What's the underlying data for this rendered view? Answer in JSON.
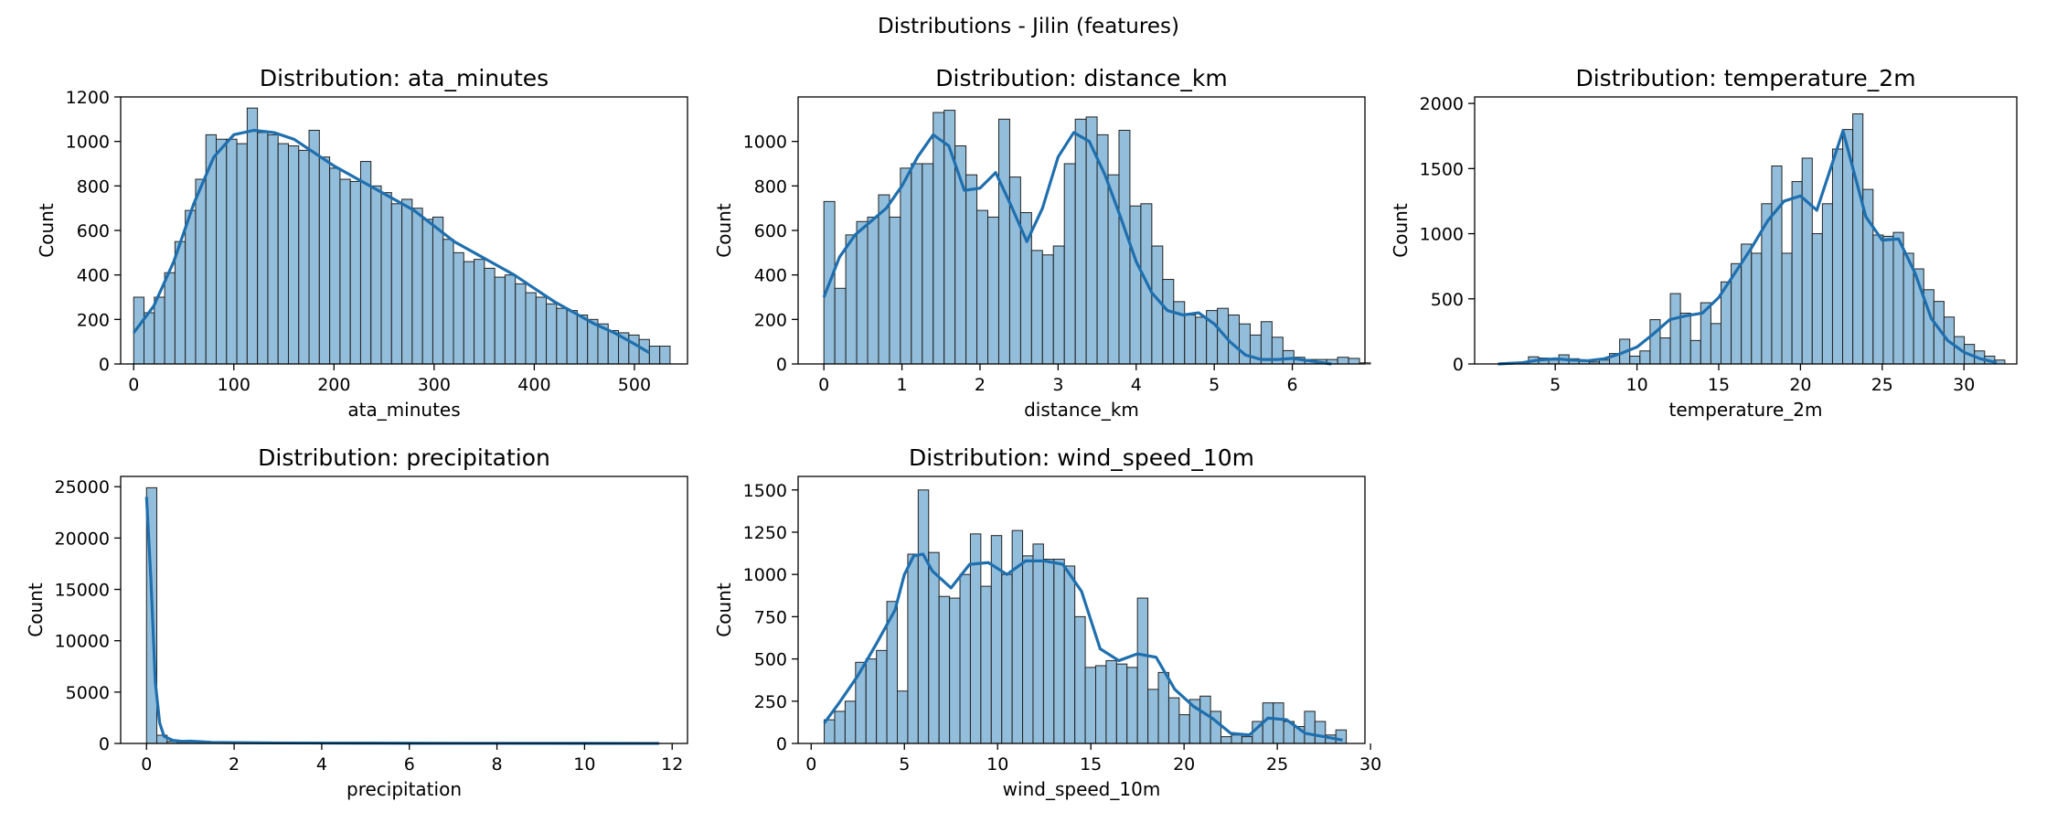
{
  "figure_title": "Distributions - Jilin (features)",
  "chart_data": [
    {
      "type": "bar",
      "subtype": "histogram_with_kde",
      "title": "Distribution: ata_minutes",
      "xlabel": "ata_minutes",
      "ylabel": "Count",
      "xlim": [
        -13,
        553
      ],
      "ylim": [
        0,
        1200
      ],
      "xticks": [
        0,
        100,
        200,
        300,
        400,
        500
      ],
      "yticks": [
        0,
        200,
        400,
        600,
        800,
        1000,
        1200
      ],
      "bin_start": 0,
      "bin_width": 10.3,
      "values": [
        300,
        230,
        300,
        410,
        550,
        690,
        830,
        1030,
        1010,
        1010,
        990,
        1150,
        1040,
        1030,
        990,
        980,
        960,
        1050,
        930,
        880,
        830,
        820,
        910,
        800,
        770,
        720,
        740,
        700,
        650,
        660,
        560,
        500,
        460,
        470,
        430,
        390,
        400,
        360,
        320,
        300,
        270,
        250,
        240,
        220,
        200,
        180,
        150,
        140,
        130,
        110,
        80,
        80
      ],
      "kde": {
        "x": [
          0,
          20,
          40,
          60,
          80,
          100,
          120,
          140,
          160,
          180,
          200,
          220,
          240,
          260,
          280,
          300,
          320,
          340,
          360,
          380,
          400,
          420,
          440,
          460,
          480,
          500,
          515
        ],
        "y": [
          140,
          260,
          460,
          720,
          930,
          1030,
          1050,
          1040,
          1010,
          950,
          890,
          840,
          790,
          740,
          690,
          620,
          550,
          500,
          450,
          400,
          340,
          280,
          230,
          180,
          140,
          90,
          50
        ]
      }
    },
    {
      "type": "bar",
      "subtype": "histogram_with_kde",
      "title": "Distribution: distance_km",
      "xlabel": "distance_km",
      "ylabel": "Count",
      "xlim": [
        -0.33,
        6.93
      ],
      "ylim": [
        0,
        1200
      ],
      "xticks": [
        0,
        1,
        2,
        3,
        4,
        5,
        6
      ],
      "yticks": [
        0,
        200,
        400,
        600,
        800,
        1000
      ],
      "bin_start": 0,
      "bin_width": 0.14,
      "values": [
        730,
        340,
        580,
        640,
        660,
        760,
        660,
        880,
        900,
        900,
        1130,
        1140,
        980,
        850,
        690,
        660,
        1100,
        840,
        680,
        510,
        490,
        530,
        900,
        1100,
        1110,
        1030,
        850,
        1050,
        710,
        720,
        530,
        380,
        280,
        220,
        210,
        240,
        250,
        220,
        180,
        130,
        190,
        120,
        60,
        30,
        20,
        20,
        20,
        30,
        25,
        5
      ],
      "kde": {
        "x": [
          0,
          0.2,
          0.4,
          0.6,
          0.8,
          1.0,
          1.2,
          1.4,
          1.6,
          1.8,
          2.0,
          2.2,
          2.4,
          2.6,
          2.8,
          3.0,
          3.2,
          3.4,
          3.6,
          3.8,
          4.0,
          4.2,
          4.4,
          4.6,
          4.8,
          5.0,
          5.2,
          5.4,
          5.6,
          5.8,
          6.0,
          6.2,
          6.5
        ],
        "y": [
          300,
          480,
          580,
          640,
          700,
          800,
          930,
          1030,
          980,
          780,
          790,
          860,
          710,
          550,
          700,
          930,
          1040,
          1000,
          850,
          660,
          460,
          320,
          240,
          220,
          230,
          180,
          100,
          40,
          20,
          20,
          25,
          15,
          0
        ]
      }
    },
    {
      "type": "bar",
      "subtype": "histogram_with_kde",
      "title": "Distribution: temperature_2m",
      "xlabel": "temperature_2m",
      "ylabel": "Count",
      "xlim": [
        0.07,
        33.23
      ],
      "ylim": [
        0,
        2050
      ],
      "xticks": [
        5,
        10,
        15,
        20,
        25,
        30
      ],
      "yticks": [
        0,
        500,
        1000,
        1500,
        2000
      ],
      "bin_start": 1.5,
      "bin_width": 0.62,
      "values": [
        2,
        5,
        10,
        55,
        45,
        30,
        70,
        40,
        20,
        15,
        30,
        80,
        190,
        60,
        100,
        340,
        200,
        540,
        390,
        180,
        470,
        310,
        630,
        770,
        920,
        850,
        1230,
        1520,
        850,
        1400,
        1580,
        1000,
        1230,
        1650,
        1800,
        1920,
        1340,
        990,
        980,
        1010,
        850,
        730,
        570,
        480,
        360,
        210,
        150,
        100,
        60,
        30
      ],
      "kde": {
        "x": [
          1.5,
          3,
          4,
          5,
          6,
          7,
          8,
          9,
          10,
          11,
          12,
          13,
          14,
          15,
          16,
          17,
          18,
          19,
          20,
          21,
          22,
          22.6,
          23,
          24,
          25,
          26,
          27,
          28,
          29,
          30,
          31,
          32
        ],
        "y": [
          0,
          10,
          30,
          40,
          30,
          25,
          40,
          80,
          130,
          230,
          340,
          370,
          390,
          510,
          700,
          890,
          1100,
          1250,
          1290,
          1180,
          1560,
          1790,
          1600,
          1130,
          950,
          960,
          700,
          350,
          180,
          90,
          40,
          10
        ]
      }
    },
    {
      "type": "bar",
      "subtype": "histogram_with_kde",
      "title": "Distribution: precipitation",
      "xlabel": "precipitation",
      "ylabel": "Count",
      "xlim": [
        -0.59,
        12.35
      ],
      "ylim": [
        0,
        26000
      ],
      "xticks": [
        0,
        2,
        4,
        6,
        8,
        10,
        12
      ],
      "yticks": [
        0,
        5000,
        10000,
        15000,
        20000,
        25000
      ],
      "bin_start": 0,
      "bin_width": 0.235,
      "values": [
        24900,
        800,
        200,
        120,
        150,
        200,
        100,
        80,
        60,
        50,
        40,
        40,
        40,
        30,
        30,
        25,
        25,
        20,
        20,
        20,
        40,
        25,
        20,
        15,
        15,
        10,
        10,
        10,
        10,
        8,
        8,
        8,
        5,
        5,
        5,
        5,
        5,
        5,
        5,
        5,
        5,
        5,
        5,
        5,
        5,
        5,
        5,
        5,
        5,
        5
      ],
      "kde": {
        "x": [
          0,
          0.1,
          0.2,
          0.3,
          0.4,
          0.6,
          0.8,
          1.0,
          1.2,
          1.5,
          2,
          3,
          4,
          5,
          6,
          8,
          10,
          11.7
        ],
        "y": [
          24000,
          16000,
          6000,
          2000,
          700,
          300,
          200,
          220,
          180,
          100,
          80,
          50,
          40,
          30,
          25,
          15,
          10,
          5
        ]
      }
    },
    {
      "type": "bar",
      "subtype": "histogram_with_kde",
      "title": "Distribution: wind_speed_10m",
      "xlabel": "wind_speed_10m",
      "ylabel": "Count",
      "xlim": [
        -0.7,
        29.7
      ],
      "ylim": [
        0,
        1580
      ],
      "xticks": [
        0,
        5,
        10,
        15,
        20,
        25,
        30
      ],
      "yticks": [
        0,
        250,
        500,
        750,
        1000,
        1250,
        1500
      ],
      "bin_start": 0.7,
      "bin_width": 0.56,
      "values": [
        140,
        190,
        250,
        480,
        500,
        550,
        840,
        310,
        1120,
        1500,
        1130,
        870,
        860,
        1000,
        1240,
        930,
        1230,
        1000,
        1260,
        1110,
        1180,
        1090,
        1090,
        1050,
        750,
        450,
        460,
        490,
        470,
        450,
        860,
        320,
        420,
        270,
        170,
        260,
        280,
        190,
        40,
        50,
        40,
        130,
        240,
        240,
        130,
        100,
        190,
        130,
        50,
        80
      ],
      "kde": {
        "x": [
          0.7,
          1.5,
          2.5,
          3.5,
          4.5,
          5.0,
          5.5,
          6.0,
          6.5,
          7.5,
          8.5,
          9.5,
          10.5,
          11.5,
          12.5,
          13.5,
          14.5,
          15.5,
          16.5,
          17.5,
          18.5,
          19.5,
          20.5,
          21.5,
          22.5,
          23.5,
          24.5,
          25.5,
          26.5,
          27.5,
          28.5
        ],
        "y": [
          120,
          240,
          400,
          590,
          790,
          1000,
          1110,
          1120,
          1020,
          920,
          1060,
          1070,
          1000,
          1080,
          1080,
          1060,
          900,
          560,
          490,
          530,
          510,
          320,
          220,
          150,
          60,
          50,
          150,
          140,
          60,
          40,
          20
        ]
      }
    }
  ]
}
